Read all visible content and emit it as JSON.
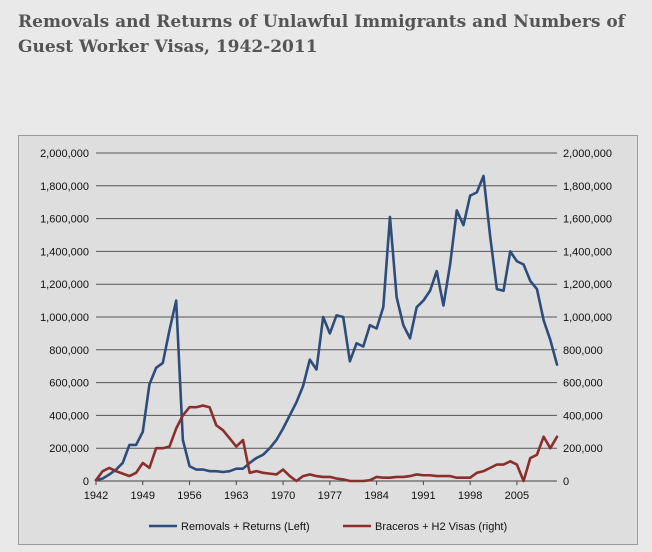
{
  "title": "Removals and Returns of Unlawful Immigrants and Numbers of Guest Worker Visas, 1942-2011",
  "chart_data": {
    "type": "line",
    "title": "Removals and Returns of Unlawful Immigrants and Numbers of Guest Worker Visas, 1942-2011",
    "xlabel": "",
    "ylabel": "",
    "xlim": [
      1942,
      2011
    ],
    "ylim": [
      0,
      2000000
    ],
    "y2lim": [
      0,
      2000000
    ],
    "x_ticks": [
      "1942",
      "1949",
      "1956",
      "1963",
      "1970",
      "1977",
      "1984",
      "1991",
      "1998",
      "2005"
    ],
    "y_ticks": [
      "0",
      "200,000",
      "400,000",
      "600,000",
      "800,000",
      "1,000,000",
      "1,200,000",
      "1,400,000",
      "1,600,000",
      "1,800,000",
      "2,000,000"
    ],
    "y2_ticks": [
      "0",
      "200,000",
      "400,000",
      "600,000",
      "800,000",
      "1,000,000",
      "1,200,000",
      "1,400,000",
      "1,600,000",
      "1,800,000",
      "2,000,000"
    ],
    "grid": true,
    "legend_position": "bottom",
    "x": [
      1942,
      1943,
      1944,
      1945,
      1946,
      1947,
      1948,
      1949,
      1950,
      1951,
      1952,
      1953,
      1954,
      1955,
      1956,
      1957,
      1958,
      1959,
      1960,
      1961,
      1962,
      1963,
      1964,
      1965,
      1966,
      1967,
      1968,
      1969,
      1970,
      1971,
      1972,
      1973,
      1974,
      1975,
      1976,
      1977,
      1978,
      1979,
      1980,
      1981,
      1982,
      1983,
      1984,
      1985,
      1986,
      1987,
      1988,
      1989,
      1990,
      1991,
      1992,
      1993,
      1994,
      1995,
      1996,
      1997,
      1998,
      1999,
      2000,
      2001,
      2002,
      2003,
      2004,
      2005,
      2006,
      2007,
      2008,
      2009,
      2010,
      2011
    ],
    "series": [
      {
        "name": "Removals + Returns (Left)",
        "axis": "left",
        "color": "#2e4d7b",
        "values": [
          5000,
          15000,
          40000,
          70000,
          110000,
          220000,
          220000,
          300000,
          590000,
          690000,
          720000,
          920000,
          1100000,
          250000,
          90000,
          70000,
          70000,
          60000,
          60000,
          55000,
          60000,
          75000,
          75000,
          110000,
          140000,
          160000,
          200000,
          250000,
          320000,
          400000,
          480000,
          580000,
          740000,
          680000,
          1000000,
          900000,
          1010000,
          1000000,
          730000,
          840000,
          820000,
          950000,
          930000,
          1060000,
          1610000,
          1120000,
          950000,
          870000,
          1060000,
          1100000,
          1160000,
          1280000,
          1070000,
          1320000,
          1650000,
          1560000,
          1740000,
          1760000,
          1860000,
          1490000,
          1170000,
          1160000,
          1400000,
          1340000,
          1320000,
          1220000,
          1170000,
          980000,
          860000,
          710000
        ]
      },
      {
        "name": "Braceros + H2 Visas (right)",
        "axis": "right",
        "color": "#8b2e2e",
        "values": [
          5000,
          60000,
          80000,
          60000,
          45000,
          30000,
          50000,
          110000,
          80000,
          200000,
          200000,
          210000,
          320000,
          400000,
          450000,
          450000,
          460000,
          450000,
          340000,
          310000,
          260000,
          210000,
          250000,
          50000,
          60000,
          50000,
          45000,
          40000,
          70000,
          30000,
          0,
          30000,
          40000,
          30000,
          25000,
          25000,
          15000,
          10000,
          0,
          0,
          0,
          5000,
          25000,
          20000,
          20000,
          25000,
          25000,
          30000,
          40000,
          35000,
          35000,
          30000,
          30000,
          30000,
          20000,
          20000,
          20000,
          50000,
          60000,
          80000,
          100000,
          100000,
          120000,
          100000,
          0,
          140000,
          160000,
          270000,
          200000,
          270000
        ]
      }
    ]
  }
}
